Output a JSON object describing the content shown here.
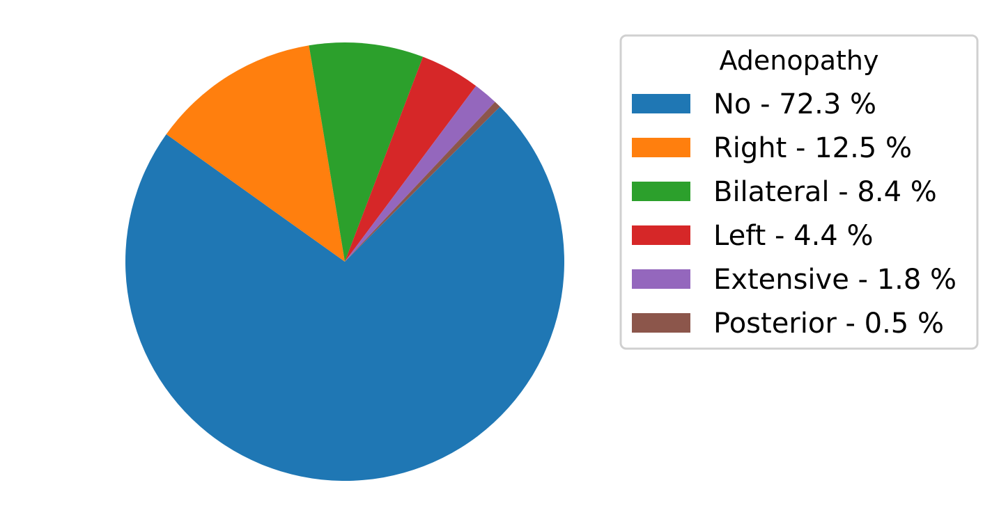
{
  "chart_data": {
    "type": "pie",
    "title": "",
    "start_angle_deg": 90,
    "direction": "clockwise_from_right_side",
    "legend": {
      "title": "Adenopathy",
      "placement": "right"
    },
    "series": [
      {
        "name": "No",
        "value": 72.3,
        "label": "No - 72.3 %",
        "color": "#1f77b4"
      },
      {
        "name": "Right",
        "value": 12.5,
        "label": "Right - 12.5 %",
        "color": "#ff7f0e"
      },
      {
        "name": "Bilateral",
        "value": 8.4,
        "label": "Bilateral - 8.4 %",
        "color": "#2ca02c"
      },
      {
        "name": "Left",
        "value": 4.4,
        "label": "Left - 4.4 %",
        "color": "#d62728"
      },
      {
        "name": "Extensive",
        "value": 1.8,
        "label": "Extensive - 1.8 %",
        "color": "#9467bd"
      },
      {
        "name": "Posterior",
        "value": 0.5,
        "label": "Posterior - 0.5 %",
        "color": "#8c564b"
      }
    ]
  }
}
